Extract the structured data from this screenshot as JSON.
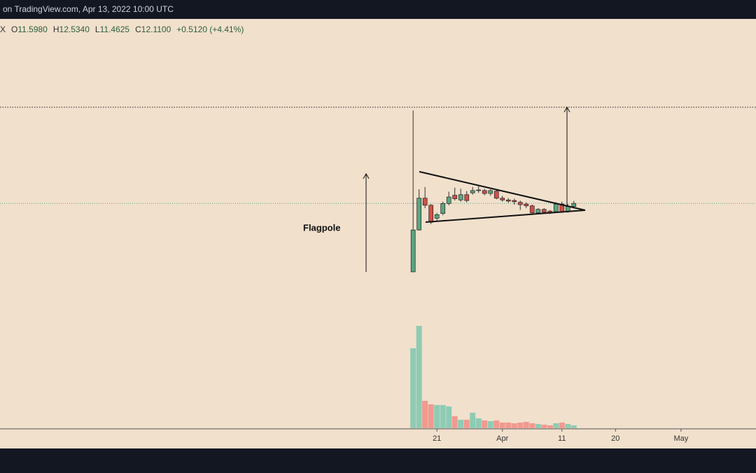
{
  "chart_data": {
    "type": "candlestick",
    "title": "on TradingView.com, Apr 13, 2022 10:00 UTC",
    "legend": {
      "symbol": "X",
      "items": [
        {
          "prefix": "O",
          "text": "11.5980"
        },
        {
          "prefix": "H",
          "text": "12.5340"
        },
        {
          "prefix": "L",
          "text": "11.4625"
        },
        {
          "prefix": "C",
          "text": "12.1100"
        },
        {
          "prefix": "",
          "text": "+0.5120 (+4.41%)"
        }
      ]
    },
    "annotation": "Flagpole",
    "x": [
      0,
      1,
      2,
      3,
      4,
      5,
      6,
      7,
      8,
      9,
      10,
      11,
      12,
      13,
      14,
      15,
      16,
      17,
      18,
      19,
      20,
      21,
      22,
      23,
      24,
      25,
      26,
      27
    ],
    "open": [
      0.48,
      7.6,
      13.0,
      11.8,
      9.6,
      10.4,
      12.1,
      13.5,
      12.7,
      13.6,
      13.9,
      14.3,
      14.3,
      13.8,
      14.2,
      13.0,
      12.7,
      12.6,
      12.3,
      12.0,
      11.7,
      10.5,
      11.1,
      10.8,
      10.7,
      12.0,
      10.7,
      11.598
    ],
    "high": [
      27.9,
      14.5,
      14.9,
      12.0,
      10.5,
      12.4,
      14.1,
      14.8,
      14.6,
      14.2,
      14.9,
      15.2,
      14.6,
      14.5,
      14.5,
      13.4,
      13.0,
      12.9,
      12.6,
      12.3,
      11.9,
      11.3,
      11.3,
      11.0,
      12.3,
      12.4,
      12.0,
      12.534
    ],
    "low": [
      0.45,
      7.5,
      11.3,
      8.6,
      9.2,
      10.1,
      11.8,
      12.6,
      12.4,
      12.3,
      13.6,
      13.9,
      13.5,
      13.4,
      12.8,
      12.4,
      12.2,
      11.9,
      11.0,
      11.3,
      10.3,
      10.3,
      10.4,
      10.3,
      10.5,
      10.5,
      10.5,
      11.4625
    ],
    "close": [
      7.6,
      13.0,
      11.8,
      8.9,
      10.2,
      12.1,
      13.2,
      12.9,
      13.6,
      12.6,
      14.3,
      14.4,
      13.8,
      14.3,
      13.0,
      12.7,
      12.5,
      12.4,
      11.9,
      11.7,
      10.5,
      11.1,
      10.6,
      10.5,
      12.0,
      10.7,
      11.6,
      12.11
    ],
    "volume": [
      114,
      146,
      39,
      34,
      33,
      33,
      31,
      17,
      12,
      12,
      22,
      14,
      11,
      10,
      11,
      8,
      8,
      7,
      8,
      9,
      7,
      6,
      5,
      4,
      7,
      8,
      6,
      4
    ],
    "up_color": "#5aa57f",
    "down_color": "#d24f45",
    "volume_up_color": "#8fcbb4",
    "volume_down_color": "#f09a90",
    "xlim": [
      -69.4,
      57.6
    ],
    "xticks": [
      {
        "value": 4,
        "label": "21"
      },
      {
        "value": 15,
        "label": "Apr"
      },
      {
        "value": 25,
        "label": "11"
      },
      {
        "value": 34,
        "label": "20"
      },
      {
        "value": 45,
        "label": "May"
      }
    ],
    "ylim": [
      0,
      40
    ],
    "volume_ylim": [
      0,
      150
    ],
    "target_level": 28.45,
    "last_price": 12.11
  }
}
